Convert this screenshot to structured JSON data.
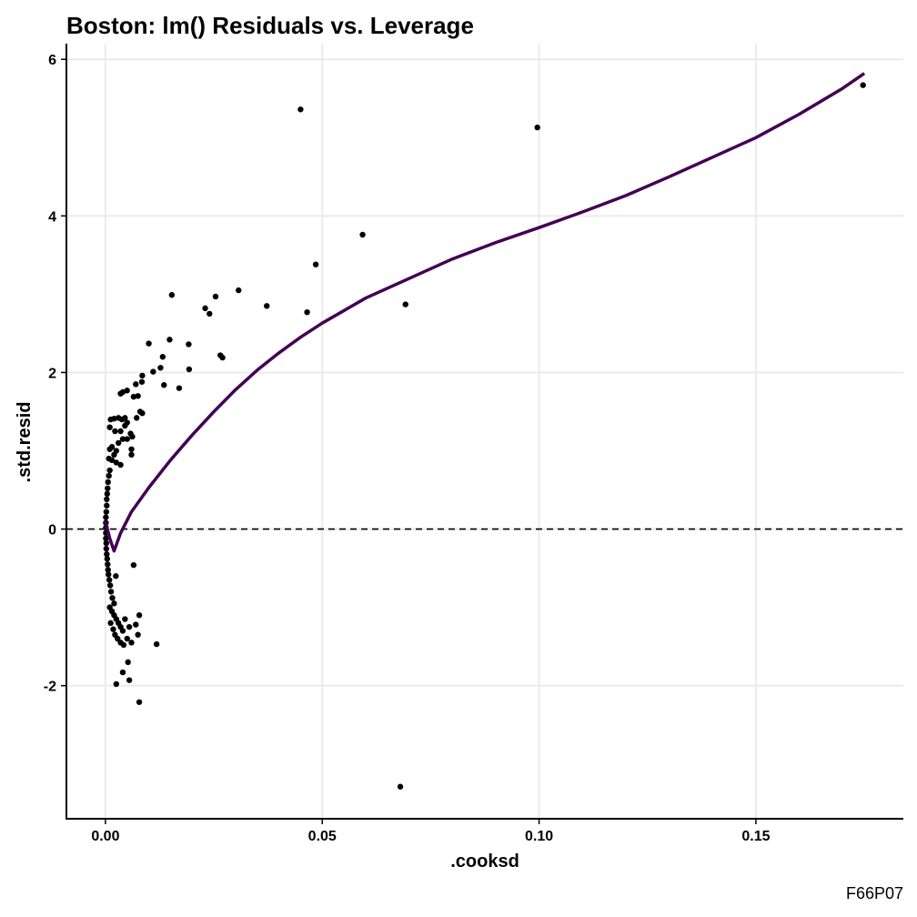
{
  "chart_data": {
    "type": "scatter",
    "title": "Boston: lm() Residuals vs. Leverage",
    "xlabel": ".cooksd",
    "ylabel": ".std.resid",
    "caption": "F66P07",
    "xlim": [
      -0.009,
      0.184
    ],
    "ylim": [
      -3.7,
      6.2
    ],
    "x_ticks": [
      0.0,
      0.05,
      0.1,
      0.15
    ],
    "x_tick_labels": [
      "0.00",
      "0.05",
      "0.10",
      "0.15"
    ],
    "y_ticks": [
      -2,
      0,
      2,
      4,
      6
    ],
    "y_tick_labels": [
      "-2",
      "0",
      "2",
      "4",
      "6"
    ],
    "grid": true,
    "reference_line": {
      "y": 0,
      "style": "dashed",
      "color": "#000000"
    },
    "colors": {
      "points": "#000000",
      "smooth": "#440154",
      "grid": "#ebebeb"
    },
    "points": [
      [
        0.1747,
        5.67
      ],
      [
        0.0996,
        5.13
      ],
      [
        0.045,
        5.36
      ],
      [
        0.0593,
        3.76
      ],
      [
        0.0485,
        3.38
      ],
      [
        0.0692,
        2.87
      ],
      [
        0.0465,
        2.77
      ],
      [
        0.0372,
        2.85
      ],
      [
        0.0307,
        3.05
      ],
      [
        0.0254,
        2.97
      ],
      [
        0.0153,
        2.99
      ],
      [
        0.023,
        2.82
      ],
      [
        0.024,
        2.75
      ],
      [
        0.0265,
        2.22
      ],
      [
        0.027,
        2.19
      ],
      [
        0.0192,
        2.36
      ],
      [
        0.0148,
        2.42
      ],
      [
        0.01,
        2.37
      ],
      [
        0.0193,
        2.04
      ],
      [
        0.017,
        1.8
      ],
      [
        0.0132,
        2.2
      ],
      [
        0.0127,
        2.06
      ],
      [
        0.011,
        2.01
      ],
      [
        0.0085,
        1.96
      ],
      [
        0.0084,
        1.88
      ],
      [
        0.0135,
        1.84
      ],
      [
        0.007,
        1.85
      ],
      [
        0.0075,
        1.7
      ],
      [
        0.0065,
        1.69
      ],
      [
        0.005,
        1.77
      ],
      [
        0.004,
        1.75
      ],
      [
        0.0035,
        1.73
      ],
      [
        0.008,
        1.5
      ],
      [
        0.0085,
        1.48
      ],
      [
        0.0072,
        1.42
      ],
      [
        0.0045,
        1.42
      ],
      [
        0.0038,
        1.4
      ],
      [
        0.003,
        1.42
      ],
      [
        0.002,
        1.41
      ],
      [
        0.0012,
        1.4
      ],
      [
        0.001,
        1.3
      ],
      [
        0.0022,
        1.25
      ],
      [
        0.0035,
        1.25
      ],
      [
        0.0045,
        1.32
      ],
      [
        0.005,
        1.36
      ],
      [
        0.0058,
        1.22
      ],
      [
        0.0062,
        1.18
      ],
      [
        0.006,
        1.02
      ],
      [
        0.006,
        0.95
      ],
      [
        0.005,
        1.15
      ],
      [
        0.004,
        1.15
      ],
      [
        0.003,
        1.1
      ],
      [
        0.0025,
        1.0
      ],
      [
        0.002,
        0.95
      ],
      [
        0.0015,
        1.05
      ],
      [
        0.001,
        1.02
      ],
      [
        0.0008,
        0.9
      ],
      [
        0.0015,
        0.88
      ],
      [
        0.0025,
        0.85
      ],
      [
        0.0035,
        0.82
      ],
      [
        0.001,
        0.75
      ],
      [
        0.0008,
        0.68
      ],
      [
        0.0006,
        0.6
      ],
      [
        0.0005,
        0.52
      ],
      [
        0.0004,
        0.45
      ],
      [
        0.0003,
        0.38
      ],
      [
        0.0003,
        0.3
      ],
      [
        0.0002,
        0.22
      ],
      [
        0.0001,
        0.15
      ],
      [
        0.0001,
        0.08
      ],
      [
        0.0001,
        0.02
      ],
      [
        0.0001,
        -0.05
      ],
      [
        0.0001,
        -0.12
      ],
      [
        0.0002,
        -0.18
      ],
      [
        0.0002,
        -0.25
      ],
      [
        0.0003,
        -0.32
      ],
      [
        0.0004,
        -0.38
      ],
      [
        0.0005,
        -0.45
      ],
      [
        0.0006,
        -0.52
      ],
      [
        0.0007,
        -0.58
      ],
      [
        0.0009,
        -0.65
      ],
      [
        0.0011,
        -0.72
      ],
      [
        0.0013,
        -0.8
      ],
      [
        0.0016,
        -0.88
      ],
      [
        0.002,
        -0.95
      ],
      [
        0.0024,
        -0.6
      ],
      [
        0.0065,
        -0.46
      ],
      [
        0.001,
        -1.0
      ],
      [
        0.0015,
        -1.05
      ],
      [
        0.002,
        -1.1
      ],
      [
        0.0025,
        -1.15
      ],
      [
        0.003,
        -1.2
      ],
      [
        0.0035,
        -1.25
      ],
      [
        0.004,
        -1.3
      ],
      [
        0.0012,
        -1.2
      ],
      [
        0.0018,
        -1.28
      ],
      [
        0.0022,
        -1.35
      ],
      [
        0.0028,
        -1.4
      ],
      [
        0.0035,
        -1.45
      ],
      [
        0.0042,
        -1.48
      ],
      [
        0.005,
        -1.4
      ],
      [
        0.006,
        -1.45
      ],
      [
        0.0075,
        -1.35
      ],
      [
        0.0078,
        -1.1
      ],
      [
        0.007,
        -1.22
      ],
      [
        0.0055,
        -1.25
      ],
      [
        0.0045,
        -1.15
      ],
      [
        0.0118,
        -1.47
      ],
      [
        0.0052,
        -1.7
      ],
      [
        0.004,
        -1.83
      ],
      [
        0.0055,
        -1.93
      ],
      [
        0.0025,
        -1.98
      ],
      [
        0.0078,
        -2.21
      ],
      [
        0.068,
        -3.29
      ]
    ],
    "smooth_line": [
      [
        0.0,
        0.1
      ],
      [
        0.001,
        -0.12
      ],
      [
        0.002,
        -0.28
      ],
      [
        0.0035,
        -0.05
      ],
      [
        0.006,
        0.22
      ],
      [
        0.01,
        0.53
      ],
      [
        0.015,
        0.88
      ],
      [
        0.02,
        1.2
      ],
      [
        0.025,
        1.5
      ],
      [
        0.03,
        1.78
      ],
      [
        0.035,
        2.03
      ],
      [
        0.04,
        2.25
      ],
      [
        0.045,
        2.45
      ],
      [
        0.05,
        2.63
      ],
      [
        0.06,
        2.95
      ],
      [
        0.07,
        3.2
      ],
      [
        0.08,
        3.45
      ],
      [
        0.09,
        3.66
      ],
      [
        0.1,
        3.85
      ],
      [
        0.11,
        4.05
      ],
      [
        0.12,
        4.26
      ],
      [
        0.13,
        4.5
      ],
      [
        0.14,
        4.75
      ],
      [
        0.15,
        5.0
      ],
      [
        0.16,
        5.3
      ],
      [
        0.17,
        5.63
      ],
      [
        0.175,
        5.82
      ]
    ]
  }
}
